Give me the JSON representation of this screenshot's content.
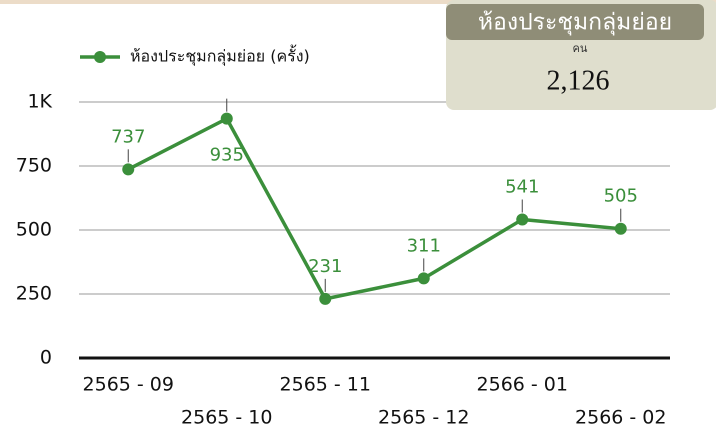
{
  "chart_data": {
    "type": "line",
    "categories": [
      "2565 - 09",
      "2565 - 10",
      "2565 - 11",
      "2565 - 12",
      "2566 - 01",
      "2566 - 02"
    ],
    "series": [
      {
        "name": "ห้องประชุมกลุ่มย่อย (ครั้ง)",
        "color": "#3b8f3b",
        "values": [
          737,
          935,
          231,
          311,
          541,
          505
        ]
      }
    ],
    "ylim": [
      0,
      1000
    ],
    "yticks": [
      0,
      250,
      500,
      750,
      {
        "value": 1000,
        "label": "1K"
      }
    ],
    "grid": true
  },
  "card": {
    "title": "ห้องประชุมกลุ่มย่อย",
    "unit": "คน",
    "value": "2,126"
  }
}
